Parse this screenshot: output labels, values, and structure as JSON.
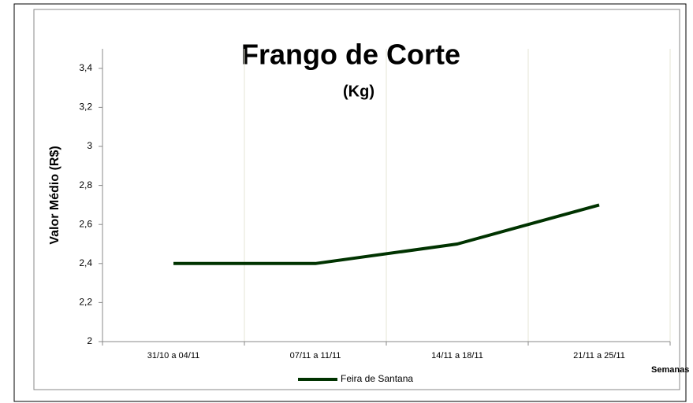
{
  "chart_data": {
    "type": "line",
    "title": "Frango de Corte",
    "subtitle": "(Kg)",
    "y_label": "Valor Médio (R$)",
    "x_label": "Semanas",
    "categories": [
      "31/10 a 04/11",
      "07/11 a 11/11",
      "14/11 a 18/11",
      "21/11 a 25/11"
    ],
    "series": [
      {
        "name": "Feira de Santana",
        "color": "#003300",
        "values": [
          2.4,
          2.4,
          2.5,
          2.7
        ]
      }
    ],
    "ylim": [
      2,
      3.5
    ],
    "yticks": [
      2,
      {
        "value": 2.2,
        "label": "2,2"
      },
      {
        "value": 2.4,
        "label": "2,4"
      },
      {
        "value": 2.6,
        "label": "2,6"
      },
      {
        "value": 2.8,
        "label": "2,8"
      },
      3,
      {
        "value": 3.2,
        "label": "3,2"
      },
      {
        "value": 3.4,
        "label": "3,4"
      }
    ],
    "grid": true,
    "legend": "bottom"
  }
}
